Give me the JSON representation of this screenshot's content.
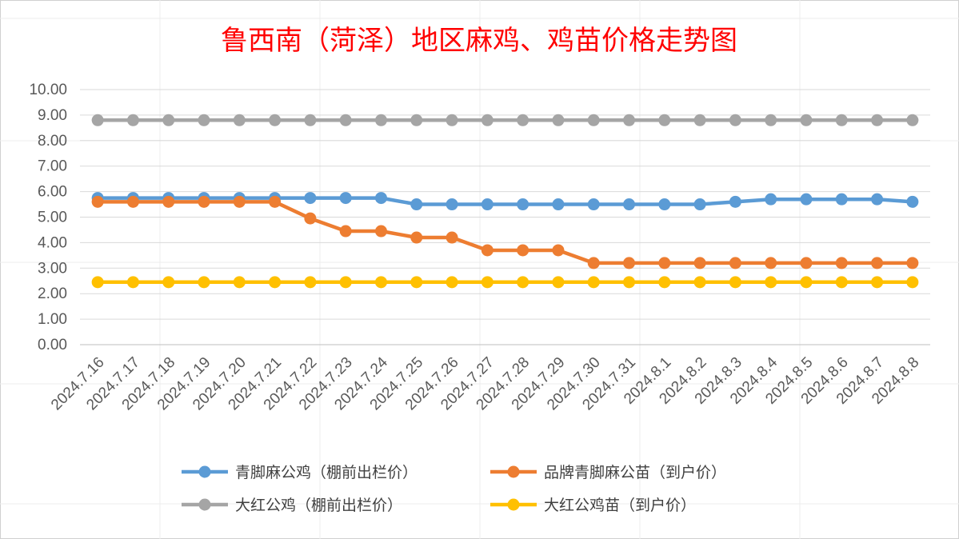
{
  "chart_data": {
    "type": "line",
    "title": "鲁西南（菏泽）地区麻鸡、鸡苗价格走势图",
    "xlabel": "",
    "ylabel": "",
    "ylim": [
      0,
      10
    ],
    "yticks": [
      "0.00",
      "1.00",
      "2.00",
      "3.00",
      "4.00",
      "5.00",
      "6.00",
      "7.00",
      "8.00",
      "9.00",
      "10.00"
    ],
    "grid": true,
    "legend_position": "bottom",
    "categories": [
      "2024.7.16",
      "2024.7.17",
      "2024.7.18",
      "2024.7.19",
      "2024.7.20",
      "2024.7.21",
      "2024.7.22",
      "2024.7.23",
      "2024.7.24",
      "2024.7.25",
      "2024.7.26",
      "2024.7.27",
      "2024.7.28",
      "2024.7.29",
      "2024.7.30",
      "2024.7.31",
      "2024.8.1",
      "2024.8.2",
      "2024.8.3",
      "2024.8.4",
      "2024.8.5",
      "2024.8.6",
      "2024.8.7",
      "2024.8.8"
    ],
    "series": [
      {
        "name": "青脚麻公鸡（棚前出栏价）",
        "color": "#5b9bd5",
        "values": [
          5.75,
          5.75,
          5.75,
          5.75,
          5.75,
          5.75,
          5.75,
          5.75,
          5.75,
          5.5,
          5.5,
          5.5,
          5.5,
          5.5,
          5.5,
          5.5,
          5.5,
          5.5,
          5.6,
          5.7,
          5.7,
          5.7,
          5.7,
          5.6
        ]
      },
      {
        "name": "品牌青脚麻公苗（到户价）",
        "color": "#ed7d31",
        "values": [
          5.6,
          5.6,
          5.6,
          5.6,
          5.6,
          5.6,
          4.95,
          4.45,
          4.45,
          4.2,
          4.2,
          3.7,
          3.7,
          3.7,
          3.2,
          3.2,
          3.2,
          3.2,
          3.2,
          3.2,
          3.2,
          3.2,
          3.2,
          3.2
        ]
      },
      {
        "name": "大红公鸡（棚前出栏价）",
        "color": "#a5a5a5",
        "values": [
          8.8,
          8.8,
          8.8,
          8.8,
          8.8,
          8.8,
          8.8,
          8.8,
          8.8,
          8.8,
          8.8,
          8.8,
          8.8,
          8.8,
          8.8,
          8.8,
          8.8,
          8.8,
          8.8,
          8.8,
          8.8,
          8.8,
          8.8,
          8.8
        ]
      },
      {
        "name": "大红公鸡苗（到户价）",
        "color": "#ffc000",
        "values": [
          2.45,
          2.45,
          2.45,
          2.45,
          2.45,
          2.45,
          2.45,
          2.45,
          2.45,
          2.45,
          2.45,
          2.45,
          2.45,
          2.45,
          2.45,
          2.45,
          2.45,
          2.45,
          2.45,
          2.45,
          2.45,
          2.45,
          2.45,
          2.45
        ]
      }
    ]
  }
}
